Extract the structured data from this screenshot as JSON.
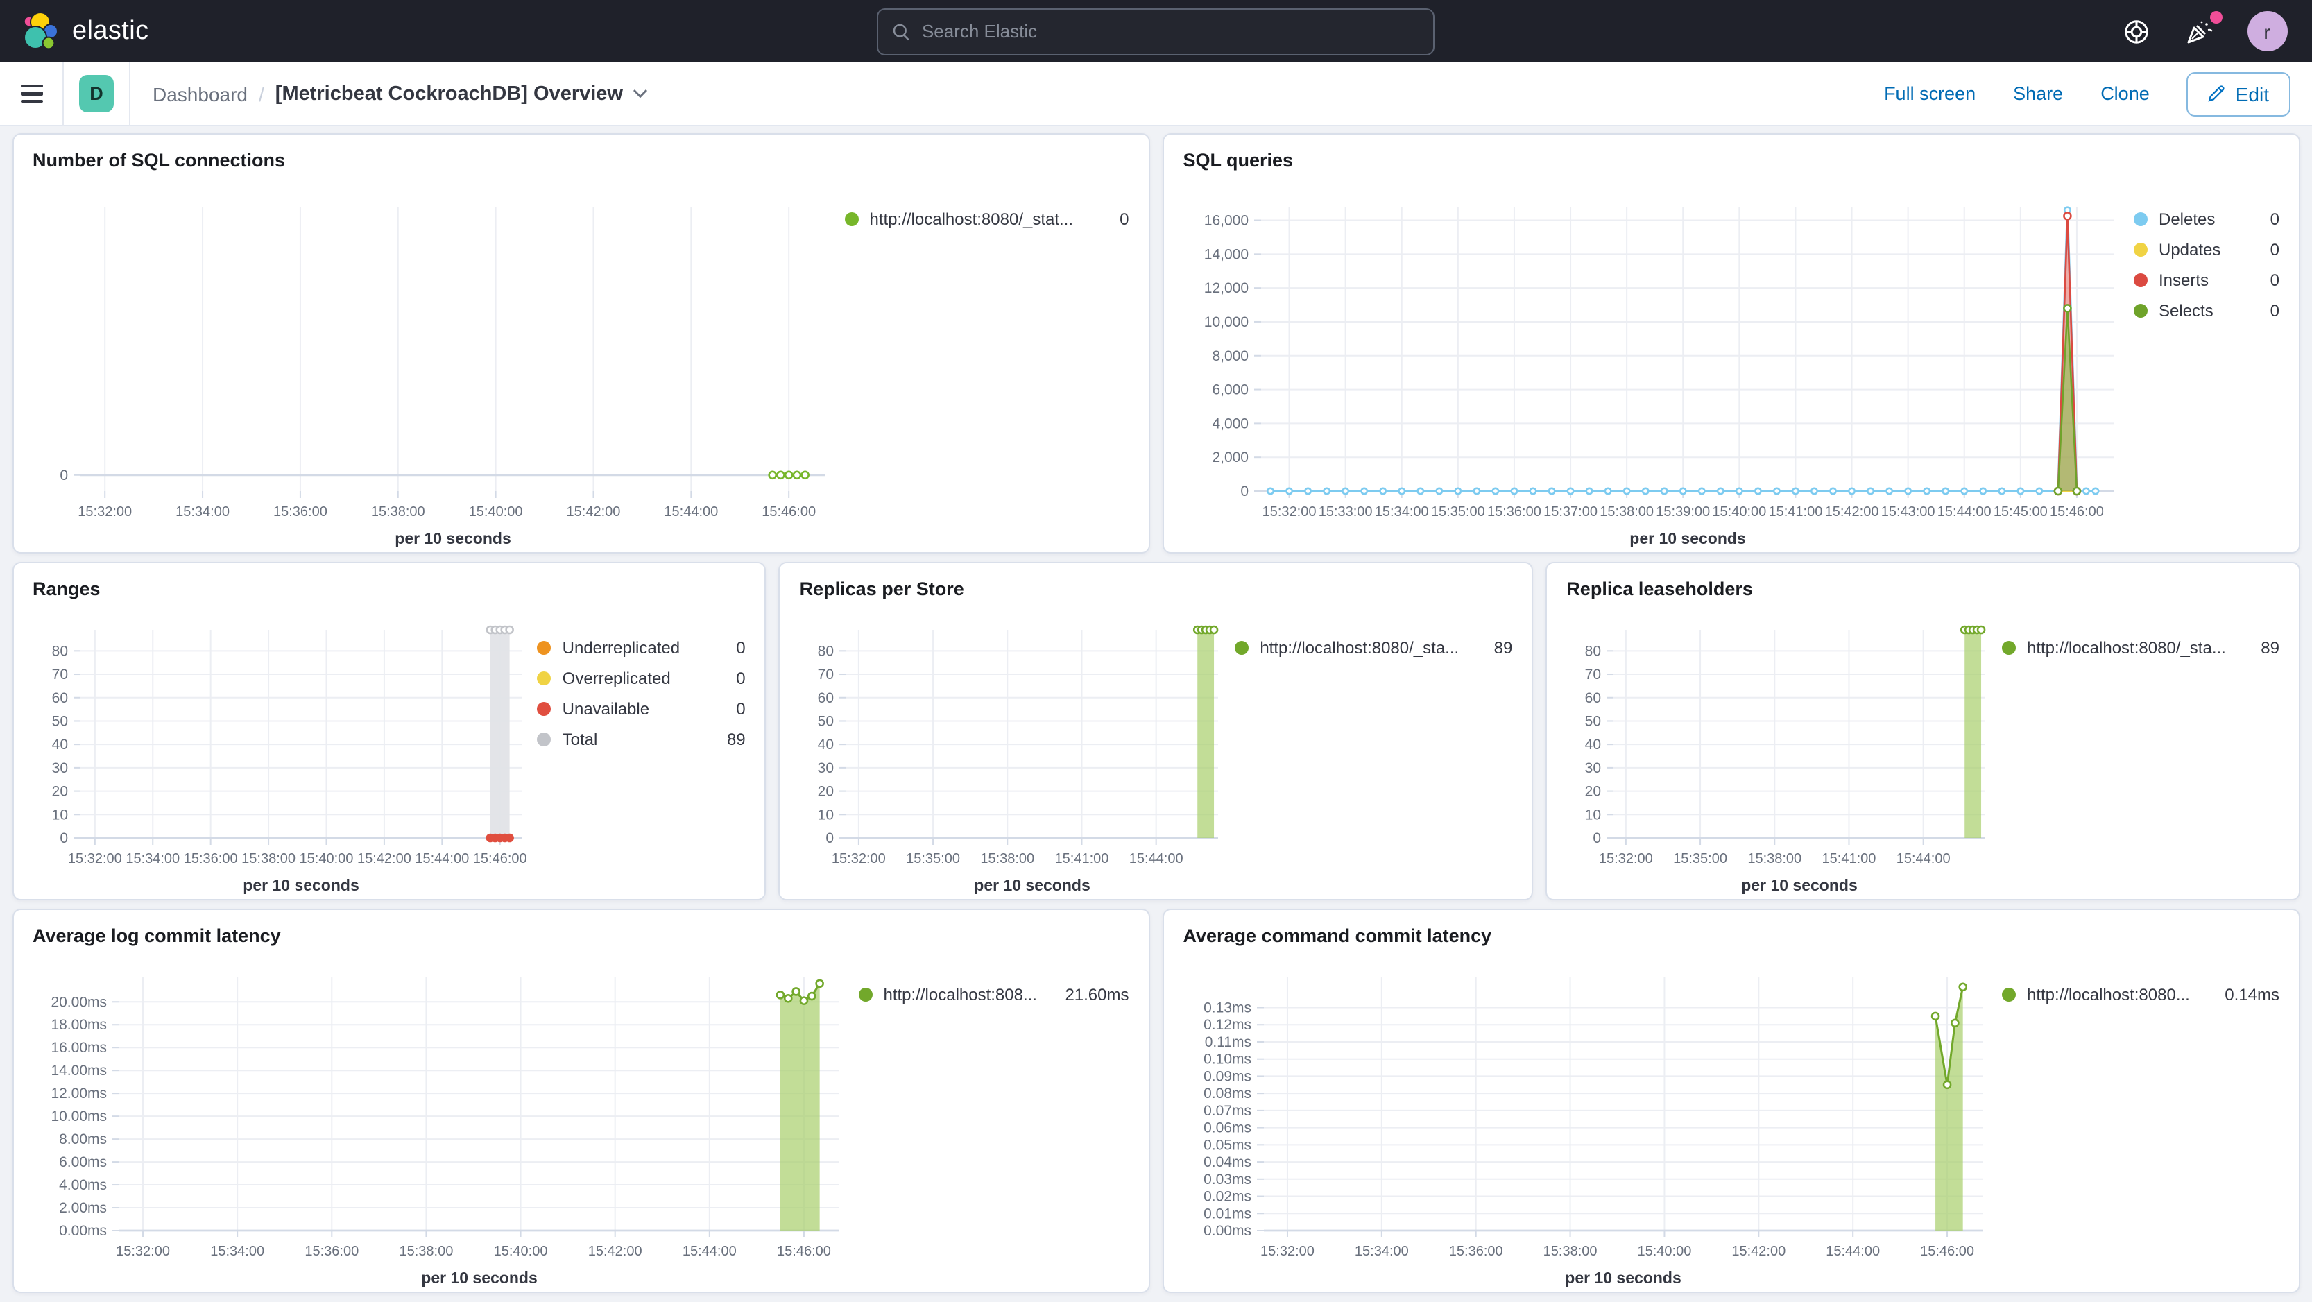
{
  "colors": {
    "link_blue": "#006BB4",
    "badge_teal": "#54c8b0",
    "notification_pink": "#f04e98",
    "avatar_purple": "#cfaee0",
    "series_green": "#72a82b",
    "series_blue": "#7dcbf0",
    "series_yellow": "#f0d344",
    "series_red": "#db4a41",
    "series_orange": "#ee9320",
    "series_gray": "#c2c4c9"
  },
  "header": {
    "logo_text": "elastic",
    "search_placeholder": "Search Elastic",
    "help_icon": "life-ring-icon",
    "news_icon": "party-popper-icon",
    "avatar_initial": "r"
  },
  "toolbar": {
    "badge": "D",
    "breadcrumb_root": "Dashboard",
    "breadcrumb_sep": "/",
    "title": "[Metricbeat CockroachDB] Overview",
    "actions": {
      "full_screen": "Full screen",
      "share": "Share",
      "clone": "Clone",
      "edit": "Edit"
    }
  },
  "panels": {
    "sql_connections": {
      "title": "Number of SQL connections",
      "legend": [
        {
          "label": "http://localhost:8080/_stat...",
          "value": "0",
          "color": "#77b62a"
        }
      ]
    },
    "sql_queries": {
      "title": "SQL queries",
      "legend": [
        {
          "label": "Deletes",
          "value": "0",
          "color": "#7dcbf0"
        },
        {
          "label": "Updates",
          "value": "0",
          "color": "#f0d344"
        },
        {
          "label": "Inserts",
          "value": "0",
          "color": "#db4a41"
        },
        {
          "label": "Selects",
          "value": "0",
          "color": "#6fa32a"
        }
      ]
    },
    "ranges": {
      "title": "Ranges",
      "legend": [
        {
          "label": "Underreplicated",
          "value": "0",
          "color": "#ee9320"
        },
        {
          "label": "Overreplicated",
          "value": "0",
          "color": "#f0d344"
        },
        {
          "label": "Unavailable",
          "value": "0",
          "color": "#e04e3f"
        },
        {
          "label": "Total",
          "value": "89",
          "color": "#c2c4c9"
        }
      ]
    },
    "replicas_store": {
      "title": "Replicas per Store",
      "legend": [
        {
          "label": "http://localhost:8080/_sta...",
          "value": "89",
          "color": "#72a82b"
        }
      ]
    },
    "replica_leaseholders": {
      "title": "Replica leaseholders",
      "legend": [
        {
          "label": "http://localhost:8080/_sta...",
          "value": "89",
          "color": "#72a82b"
        }
      ]
    },
    "log_latency": {
      "title": "Average log commit latency",
      "legend": [
        {
          "label": "http://localhost:808...",
          "value": "21.60ms",
          "color": "#72a82b"
        }
      ]
    },
    "cmd_latency": {
      "title": "Average command commit latency",
      "legend": [
        {
          "label": "http://localhost:8080...",
          "value": "0.14ms",
          "color": "#72a82b"
        }
      ]
    }
  },
  "chart_data": {
    "sql_connections": {
      "type": "line",
      "x": {
        "start": "15:31:30",
        "end": "15:46:45",
        "title": "per 10 seconds",
        "ticks": [
          "15:32:00",
          "15:34:00",
          "15:36:00",
          "15:38:00",
          "15:40:00",
          "15:42:00",
          "15:44:00",
          "15:46:00"
        ]
      },
      "y": {
        "min": -0.06,
        "max": 1,
        "ticks": [
          {
            "v": 0,
            "label": "0"
          }
        ]
      },
      "series": [
        {
          "name": "http://localhost:8080/_stat...",
          "color": "#77b62a",
          "width": 1.5,
          "markers": true,
          "points": [
            [
              "15:45:40",
              0
            ],
            [
              "15:45:50",
              0
            ],
            [
              "15:46:00",
              0
            ],
            [
              "15:46:10",
              0
            ],
            [
              "15:46:20",
              0
            ]
          ]
        }
      ],
      "layout": {
        "margins": {
          "l": 34,
          "r": 14,
          "t": 24,
          "b": 42
        }
      }
    },
    "sql_queries": {
      "type": "line",
      "x": {
        "start": "15:31:30",
        "end": "15:46:40",
        "title": "per 10 seconds",
        "ticks": [
          "15:32:00",
          "15:33:00",
          "15:34:00",
          "15:35:00",
          "15:36:00",
          "15:37:00",
          "15:38:00",
          "15:39:00",
          "15:40:00",
          "15:41:00",
          "15:42:00",
          "15:43:00",
          "15:44:00",
          "15:45:00",
          "15:46:00"
        ]
      },
      "y": {
        "min": 0,
        "max": 16800,
        "ticks": [
          {
            "v": 0,
            "label": "0"
          },
          {
            "v": 2000,
            "label": "2,000"
          },
          {
            "v": 4000,
            "label": "4,000"
          },
          {
            "v": 6000,
            "label": "6,000"
          },
          {
            "v": 8000,
            "label": "8,000"
          },
          {
            "v": 10000,
            "label": "10,000"
          },
          {
            "v": 12000,
            "label": "12,000"
          },
          {
            "v": 14000,
            "label": "14,000"
          },
          {
            "v": 16000,
            "label": "16,000"
          }
        ]
      },
      "series": [
        {
          "name": "Updates",
          "color": "#f0d344",
          "width": 1.3,
          "points": [
            [
              "15:31:40",
              0
            ],
            [
              "15:46:20",
              0
            ]
          ]
        },
        {
          "name": "Deletes",
          "color": "#7dcbf0",
          "width": 1.6,
          "markers": true,
          "marker_r": 2.1,
          "flat": {
            "from": "15:31:40",
            "to": "15:45:40",
            "every": 20,
            "y": 0
          },
          "points": [
            [
              "15:45:50",
              16600
            ],
            [
              "15:46:00",
              0
            ],
            [
              "15:46:10",
              0
            ],
            [
              "15:46:20",
              0
            ]
          ]
        },
        {
          "name": "Inserts",
          "color": "#db4a41",
          "width": 1.3,
          "fill": "#e0685f",
          "fill_opacity": 0.55,
          "markers": true,
          "points": [
            [
              "15:45:40",
              0
            ],
            [
              "15:45:50",
              16250
            ],
            [
              "15:46:00",
              0
            ]
          ]
        },
        {
          "name": "Selects",
          "color": "#6fa32a",
          "width": 1.3,
          "fill": "#8cc152",
          "fill_opacity": 0.6,
          "markers": true,
          "points": [
            [
              "15:45:40",
              0
            ],
            [
              "15:45:50",
              10800
            ],
            [
              "15:46:00",
              0
            ]
          ]
        }
      ],
      "layout": {
        "margins": {
          "l": 56,
          "r": 14,
          "t": 24,
          "b": 42
        }
      }
    },
    "ranges": {
      "type": "area",
      "x": {
        "start": "15:31:30",
        "end": "15:46:45",
        "title": "per 10 seconds",
        "ticks": [
          "15:32:00",
          "15:34:00",
          "15:36:00",
          "15:38:00",
          "15:40:00",
          "15:42:00",
          "15:44:00",
          "15:46:00"
        ]
      },
      "y": {
        "min": 0,
        "max": 89,
        "ticks": [
          {
            "v": 0,
            "label": "0"
          },
          {
            "v": 10,
            "label": "10"
          },
          {
            "v": 20,
            "label": "20"
          },
          {
            "v": 30,
            "label": "30"
          },
          {
            "v": 40,
            "label": "40"
          },
          {
            "v": 50,
            "label": "50"
          },
          {
            "v": 60,
            "label": "60"
          },
          {
            "v": 70,
            "label": "70"
          },
          {
            "v": 80,
            "label": "80"
          }
        ]
      },
      "series": [
        {
          "name": "Total",
          "color": "#c2c4c9",
          "width": 0,
          "fill": "#e2e3e7",
          "fill_opacity": 0.95,
          "markers": true,
          "points": [
            [
              "15:45:40",
              89
            ],
            [
              "15:45:50",
              89
            ],
            [
              "15:46:00",
              89
            ],
            [
              "15:46:10",
              89
            ],
            [
              "15:46:20",
              89
            ]
          ]
        },
        {
          "name": "Unavailable",
          "color": "#e04e3f",
          "width": 1.5,
          "markers": true,
          "marker_solid": true,
          "points": [
            [
              "15:45:40",
              0
            ],
            [
              "15:45:50",
              0
            ],
            [
              "15:46:00",
              0
            ],
            [
              "15:46:10",
              0
            ],
            [
              "15:46:20",
              0
            ]
          ]
        }
      ],
      "layout": {
        "margins": {
          "l": 34,
          "r": 12,
          "t": 20,
          "b": 42
        }
      }
    },
    "replicas_store": {
      "type": "area",
      "x": {
        "start": "15:31:30",
        "end": "15:46:30",
        "title": "per 10 seconds",
        "ticks": [
          "15:32:00",
          "15:35:00",
          "15:38:00",
          "15:41:00",
          "15:44:00"
        ]
      },
      "y": {
        "min": 0,
        "max": 89,
        "ticks": [
          {
            "v": 0,
            "label": "0"
          },
          {
            "v": 10,
            "label": "10"
          },
          {
            "v": 20,
            "label": "20"
          },
          {
            "v": 30,
            "label": "30"
          },
          {
            "v": 40,
            "label": "40"
          },
          {
            "v": 50,
            "label": "50"
          },
          {
            "v": 60,
            "label": "60"
          },
          {
            "v": 70,
            "label": "70"
          },
          {
            "v": 80,
            "label": "80"
          }
        ]
      },
      "series": [
        {
          "name": "http://localhost:8080/_sta...",
          "color": "#72a82b",
          "width": 1.4,
          "fill": "#a8cf6b",
          "fill_opacity": 0.7,
          "markers": true,
          "points": [
            [
              "15:45:40",
              89
            ],
            [
              "15:45:50",
              89
            ],
            [
              "15:46:00",
              89
            ],
            [
              "15:46:10",
              89
            ],
            [
              "15:46:20",
              89
            ]
          ]
        }
      ],
      "layout": {
        "margins": {
          "l": 34,
          "r": 12,
          "t": 20,
          "b": 42
        }
      }
    },
    "replica_leaseholders": {
      "type": "area",
      "x": {
        "start": "15:31:30",
        "end": "15:46:30",
        "title": "per 10 seconds",
        "ticks": [
          "15:32:00",
          "15:35:00",
          "15:38:00",
          "15:41:00",
          "15:44:00"
        ]
      },
      "y": {
        "min": 0,
        "max": 89,
        "ticks": [
          {
            "v": 0,
            "label": "0"
          },
          {
            "v": 10,
            "label": "10"
          },
          {
            "v": 20,
            "label": "20"
          },
          {
            "v": 30,
            "label": "30"
          },
          {
            "v": 40,
            "label": "40"
          },
          {
            "v": 50,
            "label": "50"
          },
          {
            "v": 60,
            "label": "60"
          },
          {
            "v": 70,
            "label": "70"
          },
          {
            "v": 80,
            "label": "80"
          }
        ]
      },
      "series": [
        {
          "name": "http://localhost:8080/_sta...",
          "color": "#72a82b",
          "width": 1.4,
          "fill": "#a8cf6b",
          "fill_opacity": 0.7,
          "markers": true,
          "points": [
            [
              "15:45:40",
              89
            ],
            [
              "15:45:50",
              89
            ],
            [
              "15:46:00",
              89
            ],
            [
              "15:46:10",
              89
            ],
            [
              "15:46:20",
              89
            ]
          ]
        }
      ],
      "layout": {
        "margins": {
          "l": 34,
          "r": 12,
          "t": 20,
          "b": 42
        }
      }
    },
    "log_latency": {
      "type": "area",
      "x": {
        "start": "15:31:30",
        "end": "15:46:45",
        "title": "per 10 seconds",
        "ticks": [
          "15:32:00",
          "15:34:00",
          "15:36:00",
          "15:38:00",
          "15:40:00",
          "15:42:00",
          "15:44:00",
          "15:46:00"
        ]
      },
      "y": {
        "min": 0,
        "max": 22.2,
        "ticks": [
          {
            "v": 0,
            "label": "0.00ms"
          },
          {
            "v": 2,
            "label": "2.00ms"
          },
          {
            "v": 4,
            "label": "4.00ms"
          },
          {
            "v": 6,
            "label": "6.00ms"
          },
          {
            "v": 8,
            "label": "8.00ms"
          },
          {
            "v": 10,
            "label": "10.00ms"
          },
          {
            "v": 12,
            "label": "12.00ms"
          },
          {
            "v": 14,
            "label": "14.00ms"
          },
          {
            "v": 16,
            "label": "16.00ms"
          },
          {
            "v": 18,
            "label": "18.00ms"
          },
          {
            "v": 20,
            "label": "20.00ms"
          }
        ]
      },
      "series": [
        {
          "name": "http://localhost:808...",
          "color": "#72a82b",
          "width": 1.5,
          "fill": "#a8cf6b",
          "fill_opacity": 0.7,
          "markers": true,
          "points": [
            [
              "15:45:30",
              20.6
            ],
            [
              "15:45:40",
              20.3
            ],
            [
              "15:45:50",
              20.9
            ],
            [
              "15:46:00",
              20.1
            ],
            [
              "15:46:10",
              20.5
            ],
            [
              "15:46:20",
              21.6
            ]
          ]
        }
      ],
      "layout": {
        "margins": {
          "l": 62,
          "r": 14,
          "t": 20,
          "b": 42
        }
      }
    },
    "cmd_latency": {
      "type": "area",
      "x": {
        "start": "15:31:30",
        "end": "15:46:45",
        "title": "per 10 seconds",
        "ticks": [
          "15:32:00",
          "15:34:00",
          "15:36:00",
          "15:38:00",
          "15:40:00",
          "15:42:00",
          "15:44:00",
          "15:46:00"
        ]
      },
      "y": {
        "min": 0,
        "max": 0.148,
        "ticks": [
          {
            "v": 0,
            "label": "0.00ms"
          },
          {
            "v": 0.01,
            "label": "0.01ms"
          },
          {
            "v": 0.02,
            "label": "0.02ms"
          },
          {
            "v": 0.03,
            "label": "0.03ms"
          },
          {
            "v": 0.04,
            "label": "0.04ms"
          },
          {
            "v": 0.05,
            "label": "0.05ms"
          },
          {
            "v": 0.06,
            "label": "0.06ms"
          },
          {
            "v": 0.07,
            "label": "0.07ms"
          },
          {
            "v": 0.08,
            "label": "0.08ms"
          },
          {
            "v": 0.09,
            "label": "0.09ms"
          },
          {
            "v": 0.1,
            "label": "0.10ms"
          },
          {
            "v": 0.11,
            "label": "0.11ms"
          },
          {
            "v": 0.12,
            "label": "0.12ms"
          },
          {
            "v": 0.13,
            "label": "0.13ms"
          }
        ]
      },
      "series": [
        {
          "name": "http://localhost:8080...",
          "color": "#72a82b",
          "width": 1.5,
          "fill": "#a8cf6b",
          "fill_opacity": 0.7,
          "markers": true,
          "points": [
            [
              "15:45:45",
              0.125
            ],
            [
              "15:46:00",
              0.085
            ],
            [
              "15:46:10",
              0.121
            ],
            [
              "15:46:20",
              0.142
            ]
          ]
        }
      ],
      "layout": {
        "margins": {
          "l": 58,
          "r": 14,
          "t": 20,
          "b": 42
        }
      }
    }
  }
}
